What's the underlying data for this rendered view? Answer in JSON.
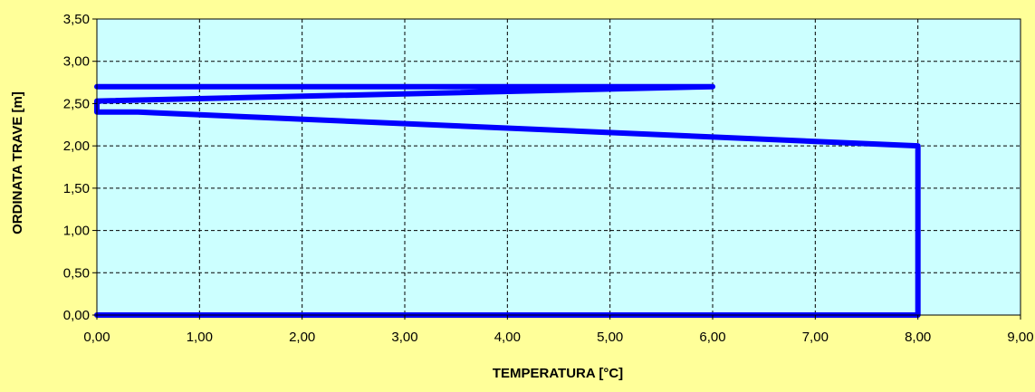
{
  "chart_data": {
    "type": "line",
    "title": "",
    "xlabel": "TEMPERATURA [°C]",
    "ylabel": "ORDINATA TRAVE [m]",
    "xlim": [
      0,
      9
    ],
    "ylim": [
      0,
      3.5
    ],
    "xticks": [
      "0,00",
      "1,00",
      "2,00",
      "3,00",
      "4,00",
      "5,00",
      "6,00",
      "7,00",
      "8,00",
      "9,00"
    ],
    "yticks": [
      "0,00",
      "0,50",
      "1,00",
      "1,50",
      "2,00",
      "2,50",
      "3,00",
      "3,50"
    ],
    "grid": true,
    "colors": {
      "background": "#FFFF99",
      "plot_area": "#CCFFFF",
      "line": "#0000FF",
      "grid": "#000000"
    },
    "series": [
      {
        "x": [
          0.0,
          8.0,
          8.0,
          0.4,
          0.0,
          0.0,
          6.0,
          0.0
        ],
        "y": [
          0.0,
          0.0,
          2.0,
          2.4,
          2.4,
          2.53,
          2.7,
          2.7
        ]
      }
    ]
  }
}
